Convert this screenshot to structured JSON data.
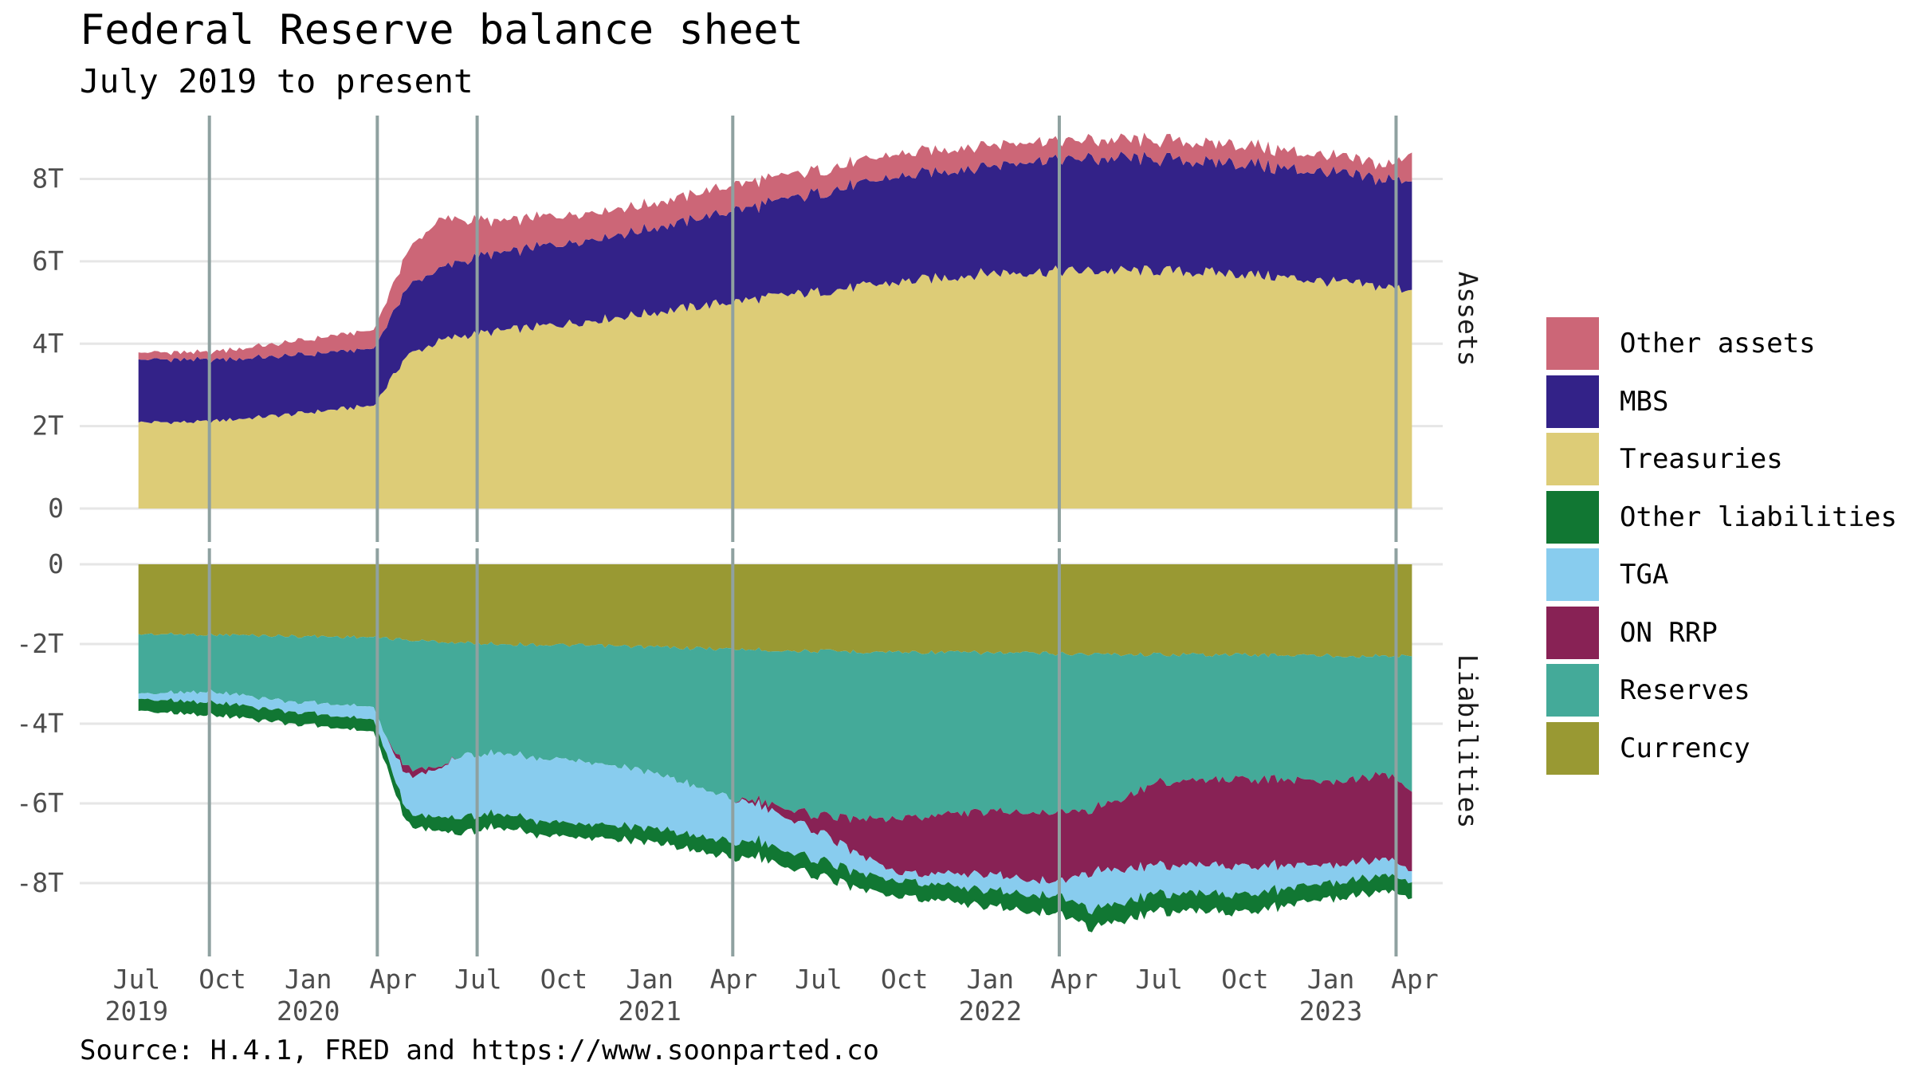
{
  "page": {
    "title": "Federal Reserve balance sheet",
    "subtitle": "July 2019 to present",
    "source": "Source: H.4.1, FRED and https://www.soonparted.co"
  },
  "chart_data": {
    "type": "area",
    "stacked": true,
    "facets": [
      "Assets",
      "Liabilities"
    ],
    "x_range": [
      "2019-07-03",
      "2023-03-29"
    ],
    "x_ticks": [
      {
        "date": "2019-07-01",
        "label": "Jul",
        "year": "2019"
      },
      {
        "date": "2019-10-01",
        "label": "Oct",
        "year": ""
      },
      {
        "date": "2020-01-01",
        "label": "Jan",
        "year": "2020"
      },
      {
        "date": "2020-04-01",
        "label": "Apr",
        "year": ""
      },
      {
        "date": "2020-07-01",
        "label": "Jul",
        "year": ""
      },
      {
        "date": "2020-10-01",
        "label": "Oct",
        "year": ""
      },
      {
        "date": "2021-01-01",
        "label": "Jan",
        "year": "2021"
      },
      {
        "date": "2021-04-01",
        "label": "Apr",
        "year": ""
      },
      {
        "date": "2021-07-01",
        "label": "Jul",
        "year": ""
      },
      {
        "date": "2021-10-01",
        "label": "Oct",
        "year": ""
      },
      {
        "date": "2022-01-01",
        "label": "Jan",
        "year": "2022"
      },
      {
        "date": "2022-04-01",
        "label": "Apr",
        "year": ""
      },
      {
        "date": "2022-07-01",
        "label": "Jul",
        "year": ""
      },
      {
        "date": "2022-10-01",
        "label": "Oct",
        "year": ""
      },
      {
        "date": "2023-01-01",
        "label": "Jan",
        "year": "2023"
      },
      {
        "date": "2023-04-01",
        "label": "Apr",
        "year": ""
      }
    ],
    "event_lines": [
      "2019-09-17",
      "2020-03-15",
      "2020-06-30",
      "2021-03-31",
      "2022-03-16",
      "2023-03-12"
    ],
    "assets": {
      "y_ticks": [
        {
          "value": 0,
          "label": "0"
        },
        {
          "value": 2,
          "label": "2T"
        },
        {
          "value": 4,
          "label": "4T"
        },
        {
          "value": 6,
          "label": "6T"
        },
        {
          "value": 8,
          "label": "8T"
        }
      ],
      "ylim": [
        0,
        9.5
      ],
      "dates": [
        "2019-07-03",
        "2019-09-11",
        "2019-12-11",
        "2020-03-11",
        "2020-03-25",
        "2020-04-15",
        "2020-05-20",
        "2020-06-10",
        "2020-07-15",
        "2020-09-30",
        "2020-12-30",
        "2021-03-31",
        "2021-06-30",
        "2021-09-29",
        "2021-12-29",
        "2022-03-16",
        "2022-06-29",
        "2022-09-28",
        "2022-12-28",
        "2023-03-08",
        "2023-03-29"
      ],
      "series": [
        {
          "name": "Treasuries",
          "color": "#DDCC77",
          "values": [
            2.09,
            2.1,
            2.28,
            2.5,
            2.96,
            3.7,
            4.05,
            4.18,
            4.28,
            4.48,
            4.74,
            5.02,
            5.26,
            5.5,
            5.72,
            5.76,
            5.77,
            5.7,
            5.51,
            5.36,
            5.31
          ]
        },
        {
          "name": "MBS",
          "color": "#332288",
          "values": [
            1.53,
            1.5,
            1.42,
            1.37,
            1.46,
            1.65,
            1.75,
            1.8,
            1.88,
            1.97,
            2.03,
            2.2,
            2.4,
            2.55,
            2.62,
            2.72,
            2.7,
            2.68,
            2.62,
            2.63,
            2.63
          ]
        },
        {
          "name": "Other assets",
          "color": "#CC6677",
          "values": [
            0.17,
            0.18,
            0.33,
            0.45,
            0.6,
            0.85,
            1.2,
            1.05,
            0.8,
            0.68,
            0.6,
            0.63,
            0.55,
            0.55,
            0.52,
            0.45,
            0.45,
            0.46,
            0.41,
            0.36,
            0.7
          ]
        }
      ]
    },
    "liabilities": {
      "y_ticks": [
        {
          "value": 0,
          "label": "0"
        },
        {
          "value": -2,
          "label": "-2T"
        },
        {
          "value": -4,
          "label": "-4T"
        },
        {
          "value": -6,
          "label": "-6T"
        },
        {
          "value": -8,
          "label": "-8T"
        }
      ],
      "ylim": [
        -9.4,
        0
      ],
      "dates": [
        "2019-07-03",
        "2019-09-11",
        "2019-12-11",
        "2020-03-11",
        "2020-03-25",
        "2020-04-15",
        "2020-05-20",
        "2020-06-10",
        "2020-07-15",
        "2020-09-30",
        "2020-12-30",
        "2021-03-31",
        "2021-04-28",
        "2021-06-02",
        "2021-06-30",
        "2021-09-29",
        "2021-12-29",
        "2022-03-16",
        "2022-04-20",
        "2022-06-29",
        "2022-09-28",
        "2022-12-28",
        "2023-03-08",
        "2023-03-29"
      ],
      "series": [
        {
          "name": "Currency",
          "color": "#999933",
          "values": [
            -1.75,
            -1.76,
            -1.8,
            -1.83,
            -1.85,
            -1.9,
            -1.94,
            -1.97,
            -1.99,
            -2.03,
            -2.07,
            -2.13,
            -2.14,
            -2.17,
            -2.18,
            -2.2,
            -2.22,
            -2.24,
            -2.25,
            -2.26,
            -2.27,
            -2.29,
            -2.3,
            -2.31
          ]
        },
        {
          "name": "Reserves",
          "color": "#44AA99",
          "values": [
            -1.5,
            -1.42,
            -1.63,
            -1.73,
            -2.5,
            -3.2,
            -3.15,
            -2.85,
            -2.72,
            -2.9,
            -3.1,
            -3.74,
            -3.8,
            -3.95,
            -4.15,
            -4.15,
            -4.0,
            -3.98,
            -3.9,
            -3.2,
            -3.12,
            -3.13,
            -3.0,
            -3.4
          ]
        },
        {
          "name": "ON RRP",
          "color": "#882255",
          "values": [
            0.0,
            0.0,
            0.0,
            0.0,
            0.0,
            -0.2,
            -0.05,
            0.0,
            0.0,
            0.0,
            0.0,
            0.0,
            -0.1,
            -0.25,
            -0.4,
            -1.4,
            -1.6,
            -1.75,
            -1.55,
            -2.05,
            -2.2,
            -2.1,
            -2.1,
            -1.99
          ]
        },
        {
          "name": "TGA",
          "color": "#88CCEE",
          "values": [
            -0.13,
            -0.26,
            -0.25,
            -0.32,
            -0.4,
            -0.9,
            -1.2,
            -1.55,
            -1.5,
            -1.6,
            -1.42,
            -1.08,
            -0.92,
            -0.82,
            -0.72,
            -0.18,
            -0.4,
            -0.35,
            -0.95,
            -0.7,
            -0.72,
            -0.45,
            -0.4,
            -0.28
          ]
        },
        {
          "name": "Other liabilities",
          "color": "#117733",
          "values": [
            -0.3,
            -0.32,
            -0.3,
            -0.3,
            -0.3,
            -0.3,
            -0.35,
            -0.4,
            -0.35,
            -0.35,
            -0.35,
            -0.4,
            -0.4,
            -0.4,
            -0.4,
            -0.4,
            -0.4,
            -0.45,
            -0.45,
            -0.45,
            -0.45,
            -0.4,
            -0.4,
            -0.4
          ]
        }
      ]
    },
    "legend": {
      "position": "right",
      "items": [
        {
          "label": "Other assets",
          "color": "#CC6677"
        },
        {
          "label": "MBS",
          "color": "#332288"
        },
        {
          "label": "Treasuries",
          "color": "#DDCC77"
        },
        {
          "label": "Other liabilities",
          "color": "#117733"
        },
        {
          "label": "TGA",
          "color": "#88CCEE"
        },
        {
          "label": "ON RRP",
          "color": "#882255"
        },
        {
          "label": "Reserves",
          "color": "#44AA99"
        },
        {
          "label": "Currency",
          "color": "#999933"
        }
      ]
    },
    "grid": true,
    "event_line_color": "#8FA1A0"
  }
}
